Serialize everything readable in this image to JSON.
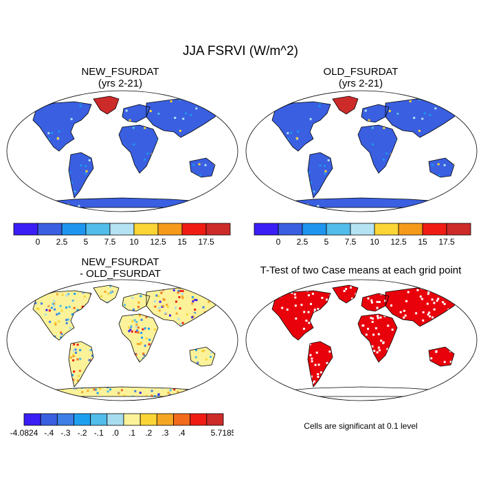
{
  "figure": {
    "title": "JJA FSRVI (W/m^2)"
  },
  "panels": [
    {
      "id": "new",
      "title_line1": "NEW_FSURDAT",
      "title_line2": "(yrs 2-21)"
    },
    {
      "id": "old",
      "title_line1": "OLD_FSURDAT",
      "title_line2": "(yrs 2-21)"
    },
    {
      "id": "diff",
      "title_line1": "NEW_FSURDAT",
      "title_line2": "- OLD_FSURDAT"
    },
    {
      "id": "ttest",
      "title_line1": "T-Test of two Case means at each grid point",
      "title_line2": ""
    }
  ],
  "ttest_note": "Cells are significant at 0.1 level",
  "chart_data": [
    {
      "type": "heatmap",
      "title": "NEW_FSURDAT (yrs 2-21)",
      "colorbar": {
        "colors": [
          "#3a1ef5",
          "#3a5fe0",
          "#1e96f0",
          "#52bcea",
          "#b4e2f2",
          "#fbd436",
          "#f59a1a",
          "#f01c14",
          "#cd2a2a"
        ],
        "ticks": [
          "0",
          "2.5",
          "5",
          "7.5",
          "10",
          "12.5",
          "15",
          "17.5"
        ]
      }
    },
    {
      "type": "heatmap",
      "title": "OLD_FSURDAT (yrs 2-21)",
      "colorbar": {
        "colors": [
          "#3a1ef5",
          "#3a5fe0",
          "#1e96f0",
          "#52bcea",
          "#b4e2f2",
          "#fbd436",
          "#f59a1a",
          "#f01c14",
          "#cd2a2a"
        ],
        "ticks": [
          "0",
          "2.5",
          "5",
          "7.5",
          "10",
          "12.5",
          "15",
          "17.5"
        ]
      }
    },
    {
      "type": "heatmap",
      "title": "NEW_FSURDAT - OLD_FSURDAT",
      "colorbar": {
        "colors": [
          "#3a1ef5",
          "#3a5fe0",
          "#3d7fe6",
          "#1ea0f0",
          "#52bcea",
          "#a6dcee",
          "#fbf29a",
          "#fbd436",
          "#f5a623",
          "#f26a1b",
          "#f01c14",
          "#cd2a2a"
        ],
        "ticks": [
          "-4.0824",
          "-.4",
          "-.3",
          "-.2",
          "-.1",
          ".0",
          ".1",
          ".2",
          ".3",
          ".4",
          "5.7185"
        ]
      }
    },
    {
      "type": "heatmap",
      "title": "T-Test of two Case means at each grid point",
      "significant_color": "#e8000b"
    }
  ]
}
